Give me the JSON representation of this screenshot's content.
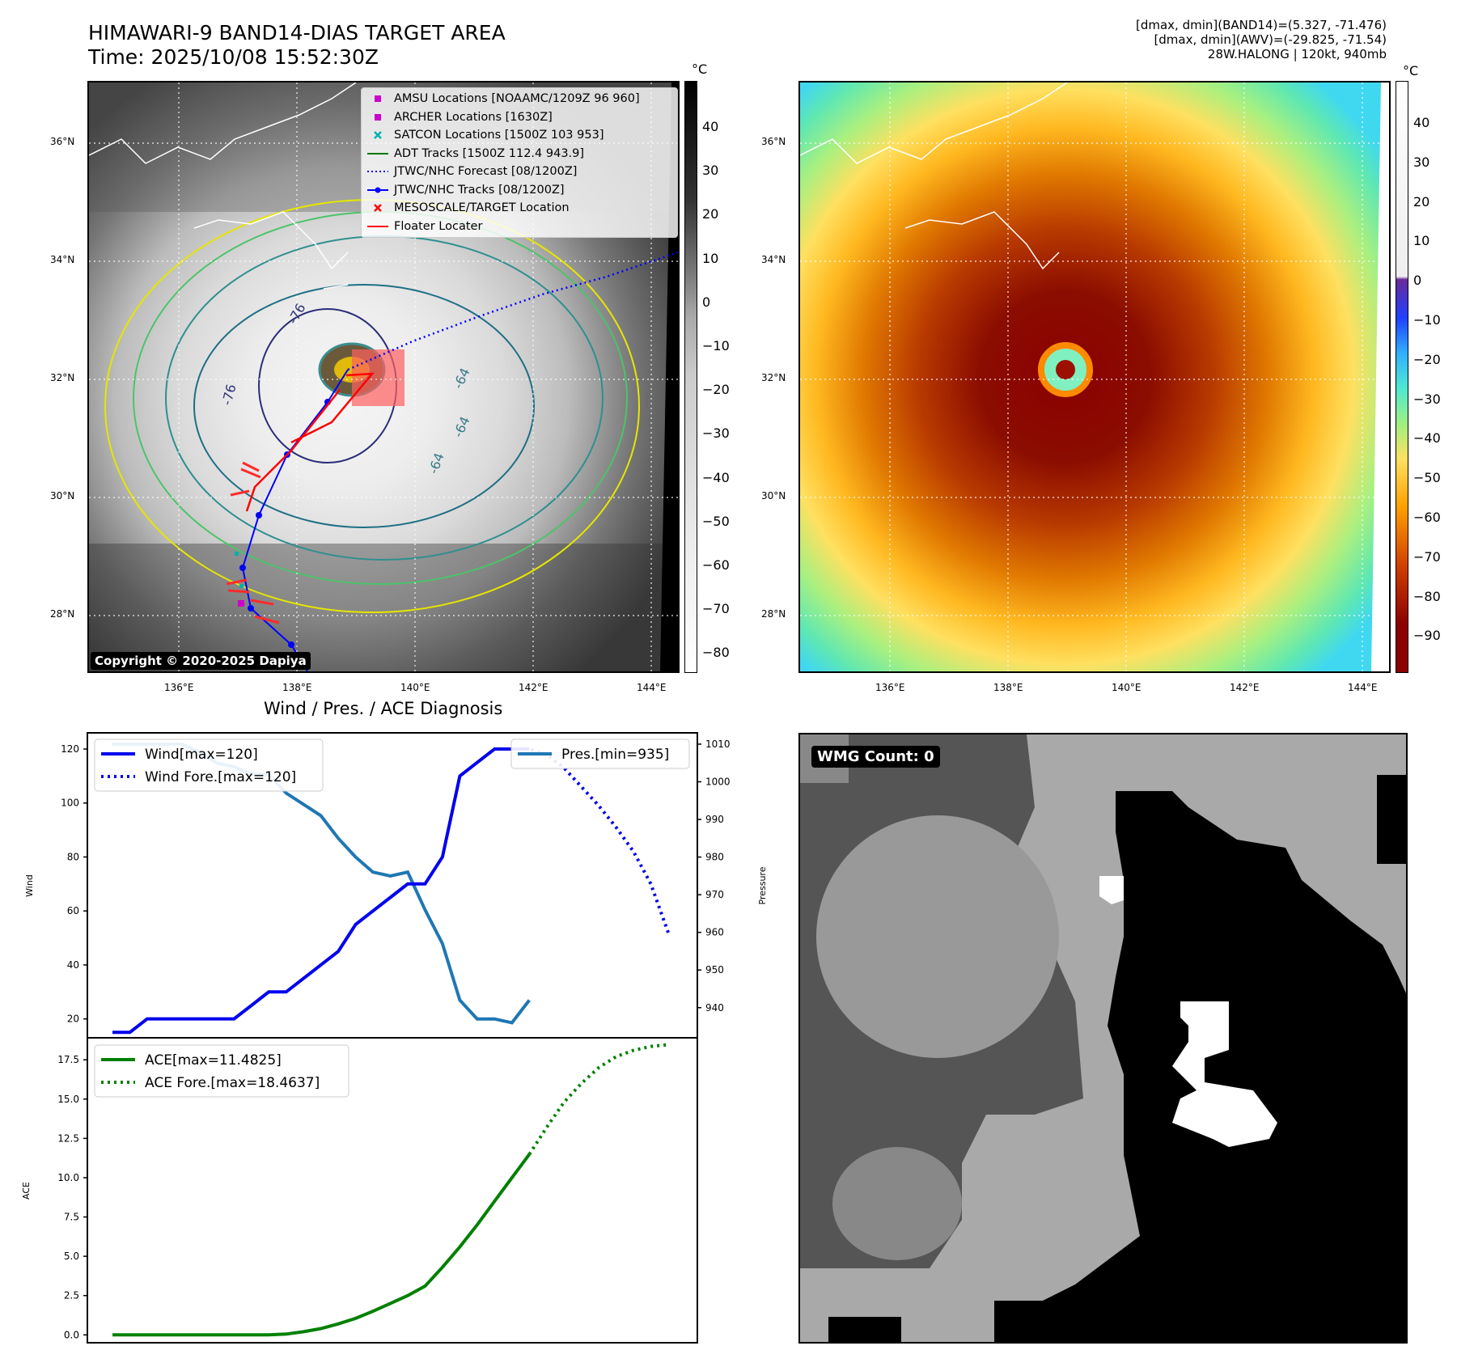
{
  "header": {
    "title_line1": "HIMAWARI-9 BAND14-DIAS TARGET AREA",
    "title_line2": "Time: 2025/10/08 15:52:30Z",
    "meta_line1": "[dmax, dmin](BAND14)=(5.327, -71.476)",
    "meta_line2": "[dmax, dmin](AWV)=(-29.825, -71.54)",
    "meta_line3": "28W.HALONG | 120kt, 940mb"
  },
  "copyright": "Copyright © 2020-2025 Dapiya",
  "map": {
    "lat_labels": [
      "36°N",
      "34°N",
      "32°N",
      "30°N",
      "28°N"
    ],
    "lon_labels": [
      "136°E",
      "138°E",
      "140°E",
      "142°E",
      "144°E"
    ],
    "contour_labels": [
      "-76",
      "-76",
      "-64",
      "-64",
      "-64"
    ]
  },
  "legend": [
    {
      "label": "AMSU Locations [NOAAMC/1209Z 96 960]",
      "color": "#cc00cc",
      "sym": "square"
    },
    {
      "label": "ARCHER Locations [1630Z]",
      "color": "#cc00cc",
      "sym": "square"
    },
    {
      "label": "SATCON Locations [1500Z 103 953]",
      "color": "#00b0b0",
      "sym": "x"
    },
    {
      "label": "ADT Tracks [1500Z 112.4 943.9]",
      "color": "#007700",
      "sym": "line"
    },
    {
      "label": "JTWC/NHC Forecast [08/1200Z]",
      "color": "#0000ff",
      "sym": "dotted"
    },
    {
      "label": "JTWC/NHC Tracks [08/1200Z]",
      "color": "#0000ff",
      "sym": "linedot"
    },
    {
      "label": "MESOSCALE/TARGET Location",
      "color": "#ff0000",
      "sym": "x"
    },
    {
      "label": "Floater Locater",
      "color": "#ff0000",
      "sym": "line"
    }
  ],
  "colorbar_gray": {
    "unit": "°C",
    "ticks": [
      "40",
      "30",
      "20",
      "10",
      "0",
      "−10",
      "−20",
      "−30",
      "−40",
      "−50",
      "−60",
      "−70",
      "−80"
    ]
  },
  "colorbar_color": {
    "unit": "°C",
    "ticks": [
      "40",
      "30",
      "20",
      "10",
      "0",
      "−10",
      "−20",
      "−30",
      "−40",
      "−50",
      "−60",
      "−70",
      "−80",
      "−90"
    ]
  },
  "wmg": {
    "label": "WMG Count: 0"
  },
  "chart_data": [
    {
      "type": "line",
      "title": "Wind / Pres. / ACE Diagnosis",
      "ylabel": "Wind",
      "y2label": "Pressure",
      "ylim": [
        13,
        126
      ],
      "y2lim": [
        932,
        1013
      ],
      "yticks": [
        20,
        40,
        60,
        80,
        100,
        120
      ],
      "y2ticks": [
        940,
        950,
        960,
        970,
        980,
        990,
        1000,
        1010
      ],
      "x": [
        0,
        1,
        2,
        3,
        4,
        5,
        6,
        7,
        8,
        9,
        10,
        11,
        12,
        13,
        14,
        15,
        16,
        17,
        18,
        19,
        20,
        21,
        22,
        23,
        24,
        25,
        26,
        27,
        28,
        29,
        30,
        31,
        32
      ],
      "series": [
        {
          "name": "Wind[max=120]",
          "color": "#0000ee",
          "style": "solid",
          "values": [
            15,
            15,
            20,
            20,
            20,
            20,
            20,
            20,
            25,
            30,
            30,
            35,
            40,
            45,
            55,
            60,
            65,
            70,
            70,
            80,
            110,
            115,
            120,
            120,
            120,
            null,
            null,
            null,
            null,
            null,
            null,
            null,
            null
          ]
        },
        {
          "name": "Wind Fore.[max=120]",
          "color": "#0000ee",
          "style": "dotted",
          "values": [
            null,
            null,
            null,
            null,
            null,
            null,
            null,
            null,
            null,
            null,
            null,
            null,
            null,
            null,
            null,
            null,
            null,
            null,
            null,
            null,
            null,
            null,
            null,
            120,
            120,
            118,
            113,
            106,
            99,
            91,
            82,
            70,
            52
          ]
        },
        {
          "name": "Pres.[min=935]",
          "color": "#1f77b4",
          "style": "solid",
          "axis": "y2",
          "values": [
            1010,
            1010,
            1010,
            1010,
            1010,
            1008,
            1005,
            1004,
            1002,
            1002,
            997,
            994,
            991,
            985,
            980,
            976,
            975,
            976,
            966,
            957,
            942,
            937,
            937,
            936,
            942,
            null,
            null,
            null,
            null,
            null,
            null,
            null,
            null
          ]
        }
      ]
    },
    {
      "type": "line",
      "ylabel": "ACE",
      "ylim": [
        -0.5,
        18.9
      ],
      "yticks": [
        0.0,
        2.5,
        5.0,
        7.5,
        10.0,
        12.5,
        15.0,
        17.5
      ],
      "ytick_labels": [
        "0.0",
        "2.5",
        "5.0",
        "7.5",
        "10.0",
        "12.5",
        "15.0",
        "17.5"
      ],
      "x": [
        0,
        1,
        2,
        3,
        4,
        5,
        6,
        7,
        8,
        9,
        10,
        11,
        12,
        13,
        14,
        15,
        16,
        17,
        18,
        19,
        20,
        21,
        22,
        23,
        24,
        25,
        26,
        27,
        28,
        29,
        30,
        31,
        32
      ],
      "series": [
        {
          "name": "ACE[max=11.4825]",
          "color": "#008000",
          "style": "solid",
          "values": [
            0,
            0,
            0,
            0,
            0,
            0,
            0,
            0,
            0,
            0,
            0.05,
            0.2,
            0.4,
            0.7,
            1.05,
            1.5,
            2.0,
            2.5,
            3.1,
            4.3,
            5.6,
            7.0,
            8.5,
            10.0,
            11.4825,
            null,
            null,
            null,
            null,
            null,
            null,
            null,
            null
          ]
        },
        {
          "name": "ACE Fore.[max=18.4637]",
          "color": "#008000",
          "style": "dotted",
          "values": [
            null,
            null,
            null,
            null,
            null,
            null,
            null,
            null,
            null,
            null,
            null,
            null,
            null,
            null,
            null,
            null,
            null,
            null,
            null,
            null,
            null,
            null,
            null,
            null,
            11.4825,
            13.2,
            14.8,
            16.0,
            17.0,
            17.7,
            18.1,
            18.35,
            18.4637
          ]
        }
      ]
    }
  ]
}
